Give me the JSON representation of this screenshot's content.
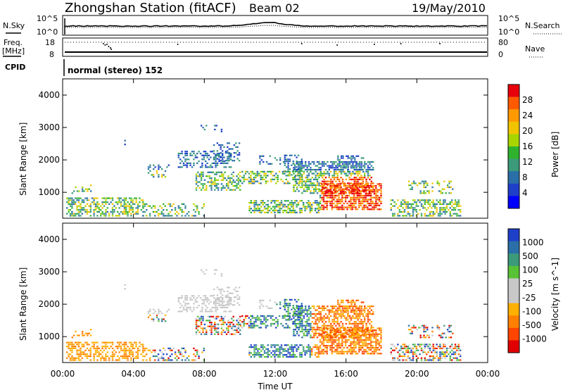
{
  "header": {
    "station": "Zhongshan Station (fitACF)",
    "beam": "Beam 02",
    "date": "19/May/2010"
  },
  "status_panels": {
    "nsky_label": "N.Sky",
    "nsky_ticks": [
      "10^5",
      "10^0"
    ],
    "nsearch_label": "N.Search",
    "nsearch_ticks": [
      "10^5",
      "10^0"
    ],
    "freq_label_1": "Freq.",
    "freq_label_2": "[MHz]",
    "freq_ticks": [
      "18",
      "8"
    ],
    "nave_label": "Nave",
    "nave_ticks": [
      "80",
      "0"
    ],
    "cpid_label": "CPID",
    "cpid_text": "normal (stereo) 152"
  },
  "chart_data": [
    {
      "type": "heatmap",
      "name": "power",
      "ylabel": "Slant Range [km]",
      "y_ticks": [
        "4000",
        "3000",
        "2000",
        "1000"
      ],
      "ylim": [
        200,
        4500
      ],
      "colorbar_label": "Power [dB]",
      "colorbar_ticks": [
        "28",
        "24",
        "20",
        "16",
        "12",
        "8",
        "4"
      ],
      "colorbar_colors": [
        "#e8000b",
        "#ff5a00",
        "#ff9900",
        "#f2c400",
        "#a8d400",
        "#2fb32f",
        "#3a9a7a",
        "#2a6fa8",
        "#1e3fc8",
        "#0000ff"
      ],
      "grid": false
    },
    {
      "type": "heatmap",
      "name": "velocity",
      "ylabel": "Slant Range [km]",
      "y_ticks": [
        "4000",
        "3000",
        "2000",
        "1000"
      ],
      "ylim": [
        200,
        4500
      ],
      "colorbar_label": "Velocity [m s^-1]",
      "colorbar_ticks": [
        "1000",
        "500",
        "100",
        "25",
        "-25",
        "-100",
        "-500",
        "-1000"
      ],
      "colorbar_colors": [
        "#1e3fc8",
        "#2a6fa8",
        "#3a9a7a",
        "#58c234",
        "#c8c8c8",
        "#c8c8c8",
        "#ffb000",
        "#ff8000",
        "#ff4500",
        "#e00000"
      ],
      "grid": false
    }
  ],
  "x_axis": {
    "label": "Time UT",
    "ticks": [
      "00:00",
      "04:00",
      "08:00",
      "12:00",
      "16:00",
      "20:00",
      "00:00"
    ]
  }
}
